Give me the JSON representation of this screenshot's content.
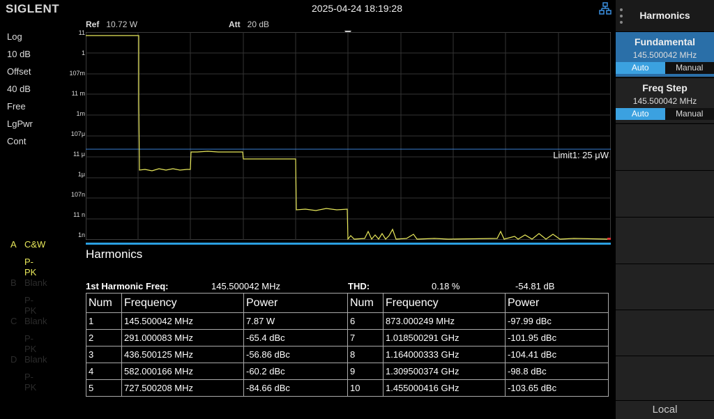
{
  "brand": "SIGLENT",
  "datetime": "2025-04-24 18:19:28",
  "ref": {
    "label": "Ref",
    "value": "10.72 W"
  },
  "att": {
    "label": "Att",
    "value": "20 dB"
  },
  "left_params": [
    "Log",
    "10 dB",
    "Offset",
    "40 dB",
    "Free",
    "LgPwr",
    "Cont"
  ],
  "traces": [
    {
      "letter": "A",
      "mode": "C&W",
      "detector": "P-PK",
      "active": true
    },
    {
      "letter": "B",
      "mode": "Blank",
      "detector": "P-PK",
      "active": false
    },
    {
      "letter": "C",
      "mode": "Blank",
      "detector": "P-PK",
      "active": false
    },
    {
      "letter": "D",
      "mode": "Blank",
      "detector": "P-PK",
      "active": false
    }
  ],
  "y_axis_labels": [
    "11",
    "1",
    "107m",
    "11 m",
    "1m",
    "107μ",
    "11 μ",
    "1μ",
    "107n",
    "11 n",
    "1n"
  ],
  "limit_label": "Limit1: 25 μW",
  "colors": {
    "trace": "#e8e85a",
    "limit": "#3a7fd5",
    "accent": "#2a9fe0",
    "grid": "#333333"
  },
  "harmonics": {
    "title": "Harmonics",
    "first_label": "1st Harmonic Freq:",
    "first_value": "145.500042 MHz",
    "thd_label": "THD:",
    "thd_percent": "0.18 %",
    "thd_db": "-54.81 dB",
    "headers": [
      "Num",
      "Frequency",
      "Power",
      "Num",
      "Frequency",
      "Power"
    ],
    "rows": [
      [
        "1",
        "145.500042 MHz",
        "7.87 W",
        "6",
        "873.000249 MHz",
        "-97.99 dBc"
      ],
      [
        "2",
        "291.000083 MHz",
        "-65.4 dBc",
        "7",
        "1.018500291 GHz",
        "-101.95 dBc"
      ],
      [
        "3",
        "436.500125 MHz",
        "-56.86 dBc",
        "8",
        "1.164000333 GHz",
        "-104.41 dBc"
      ],
      [
        "4",
        "582.000166 MHz",
        "-60.2 dBc",
        "9",
        "1.309500374 GHz",
        "-98.8 dBc"
      ],
      [
        "5",
        "727.500208 MHz",
        "-84.66 dBc",
        "10",
        "1.455000416 GHz",
        "-103.65 dBc"
      ]
    ]
  },
  "menu": {
    "title": "Harmonics",
    "fundamental": {
      "label": "Fundamental",
      "value": "145.500042 MHz",
      "opt_auto": "Auto",
      "opt_manual": "Manual"
    },
    "freq_step": {
      "label": "Freq Step",
      "value": "145.500042 MHz",
      "opt_auto": "Auto",
      "opt_manual": "Manual"
    },
    "local": "Local"
  }
}
